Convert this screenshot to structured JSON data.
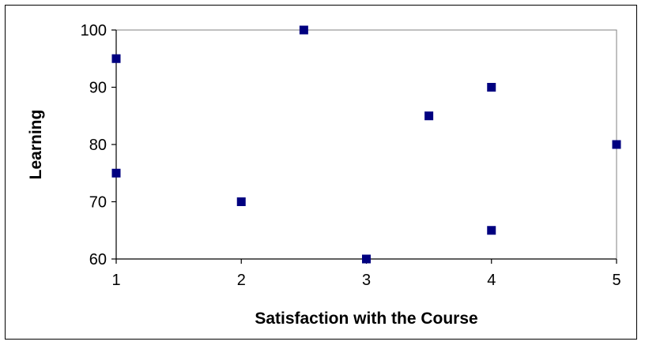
{
  "chart_data": {
    "type": "scatter",
    "title": "",
    "xlabel": "Satisfaction with the Course",
    "ylabel": "Learning",
    "xlim": [
      1,
      5
    ],
    "ylim": [
      60,
      100
    ],
    "xticks": [
      "1",
      "2",
      "3",
      "4",
      "5"
    ],
    "yticks": [
      "60",
      "70",
      "80",
      "90",
      "100"
    ],
    "grid": false,
    "legend": "none",
    "marker": "square",
    "marker_color": "#000080",
    "plot_border_color": "#808080",
    "series": [
      {
        "x": [
          1,
          1,
          2,
          2.5,
          3,
          3.5,
          4,
          4,
          5
        ],
        "y": [
          95,
          75,
          70,
          100,
          60,
          85,
          90,
          65,
          80
        ]
      }
    ]
  }
}
